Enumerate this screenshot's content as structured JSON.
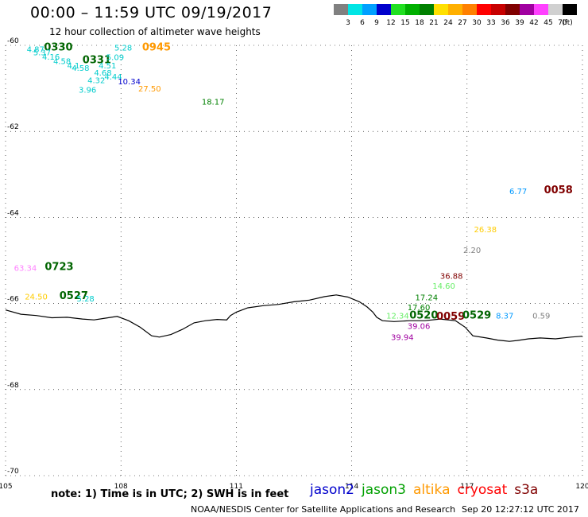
{
  "header": {
    "title": "00:00 – 11:59 UTC 09/19/2017",
    "subtitle": "12 hour collection of altimeter wave heights"
  },
  "colorbar": {
    "unit": "(ft)",
    "steps": [
      {
        "label": "3",
        "color": "#808080"
      },
      {
        "label": "6",
        "color": "#00e5e5"
      },
      {
        "label": "9",
        "color": "#00a0ff"
      },
      {
        "label": "12",
        "color": "#0000cc"
      },
      {
        "label": "15",
        "color": "#20e020"
      },
      {
        "label": "18",
        "color": "#00b000"
      },
      {
        "label": "21",
        "color": "#008000"
      },
      {
        "label": "24",
        "color": "#ffe000"
      },
      {
        "label": "27",
        "color": "#ffb000"
      },
      {
        "label": "30",
        "color": "#ff8000"
      },
      {
        "label": "33",
        "color": "#ff0000"
      },
      {
        "label": "36",
        "color": "#c80000"
      },
      {
        "label": "39",
        "color": "#800000"
      },
      {
        "label": "42",
        "color": "#a000a0"
      },
      {
        "label": "45",
        "color": "#ff40ff"
      },
      {
        "label": "70",
        "color": "#d0d0d0"
      },
      {
        "label": "",
        "color": "#000000"
      }
    ]
  },
  "map": {
    "lon_range": [
      105,
      120
    ],
    "lat_range": [
      -70,
      -60
    ],
    "lon_ticks": [
      "105",
      "108",
      "111",
      "114",
      "117",
      "120"
    ],
    "lat_ticks": [
      "-60",
      "-62",
      "-64",
      "-66",
      "-68",
      "-70"
    ],
    "grid": true,
    "coastline": [
      [
        105.0,
        -66.15
      ],
      [
        105.4,
        -66.25
      ],
      [
        105.8,
        -66.28
      ],
      [
        106.2,
        -66.33
      ],
      [
        106.6,
        -66.32
      ],
      [
        107.0,
        -66.36
      ],
      [
        107.3,
        -66.38
      ],
      [
        107.6,
        -66.34
      ],
      [
        107.9,
        -66.3
      ],
      [
        108.2,
        -66.4
      ],
      [
        108.5,
        -66.55
      ],
      [
        108.8,
        -66.75
      ],
      [
        109.0,
        -66.78
      ],
      [
        109.3,
        -66.72
      ],
      [
        109.6,
        -66.6
      ],
      [
        109.9,
        -66.45
      ],
      [
        110.2,
        -66.4
      ],
      [
        110.5,
        -66.37
      ],
      [
        110.75,
        -66.38
      ],
      [
        110.85,
        -66.28
      ],
      [
        111.0,
        -66.2
      ],
      [
        111.3,
        -66.1
      ],
      [
        111.7,
        -66.05
      ],
      [
        112.1,
        -66.02
      ],
      [
        112.5,
        -65.96
      ],
      [
        112.9,
        -65.92
      ],
      [
        113.3,
        -65.84
      ],
      [
        113.6,
        -65.8
      ],
      [
        113.9,
        -65.85
      ],
      [
        114.2,
        -65.96
      ],
      [
        114.4,
        -66.08
      ],
      [
        114.55,
        -66.2
      ],
      [
        114.65,
        -66.32
      ],
      [
        114.8,
        -66.4
      ],
      [
        115.1,
        -66.42
      ],
      [
        115.5,
        -66.4
      ],
      [
        115.9,
        -66.4
      ],
      [
        116.3,
        -66.36
      ],
      [
        116.7,
        -66.4
      ],
      [
        116.95,
        -66.55
      ],
      [
        117.15,
        -66.75
      ],
      [
        117.5,
        -66.8
      ],
      [
        117.8,
        -66.85
      ],
      [
        118.1,
        -66.88
      ],
      [
        118.3,
        -66.86
      ],
      [
        118.6,
        -66.82
      ],
      [
        118.9,
        -66.8
      ],
      [
        119.3,
        -66.82
      ],
      [
        119.7,
        -66.78
      ],
      [
        120.0,
        -66.76
      ]
    ],
    "annotations": [
      {
        "text": "4.87",
        "lon": 105.55,
        "lat": -60.08,
        "color": "#00cccc"
      },
      {
        "text": "0330",
        "lon": 106.0,
        "lat": -60.05,
        "color": "#006400",
        "bold": true
      },
      {
        "text": "5.37",
        "lon": 105.72,
        "lat": -60.16,
        "color": "#00cccc"
      },
      {
        "text": "4.16",
        "lon": 105.95,
        "lat": -60.26,
        "color": "#00cccc"
      },
      {
        "text": "4.58",
        "lon": 106.24,
        "lat": -60.36,
        "color": "#00cccc"
      },
      {
        "text": "0331",
        "lon": 107.0,
        "lat": -60.34,
        "color": "#006400",
        "bold": true
      },
      {
        "text": "4.1",
        "lon": 106.6,
        "lat": -60.46,
        "color": "#00cccc"
      },
      {
        "text": "4.58",
        "lon": 106.72,
        "lat": -60.52,
        "color": "#00cccc"
      },
      {
        "text": "4.51",
        "lon": 107.42,
        "lat": -60.46,
        "color": "#00cccc"
      },
      {
        "text": "4.68",
        "lon": 107.3,
        "lat": -60.63,
        "color": "#00cccc"
      },
      {
        "text": "4.44",
        "lon": 107.57,
        "lat": -60.72,
        "color": "#00cccc"
      },
      {
        "text": "5.28",
        "lon": 107.83,
        "lat": -60.05,
        "color": "#00cccc"
      },
      {
        "text": "5.09",
        "lon": 107.62,
        "lat": -60.27,
        "color": "#00cccc"
      },
      {
        "text": "0945",
        "lon": 108.55,
        "lat": -60.05,
        "color": "#ff9900",
        "bold": true
      },
      {
        "text": "4.32",
        "lon": 107.13,
        "lat": -60.8,
        "color": "#00cccc"
      },
      {
        "text": "10.34",
        "lon": 107.92,
        "lat": -60.83,
        "color": "#0000cc"
      },
      {
        "text": "3.96",
        "lon": 106.9,
        "lat": -61.03,
        "color": "#00cccc"
      },
      {
        "text": "27.50",
        "lon": 108.45,
        "lat": -61.0,
        "color": "#ff9900"
      },
      {
        "text": "18.17",
        "lon": 110.1,
        "lat": -61.3,
        "color": "#008000"
      },
      {
        "text": "63.34",
        "lon": 105.22,
        "lat": -65.17,
        "color": "#ff80ff"
      },
      {
        "text": "0723",
        "lon": 106.02,
        "lat": -65.15,
        "color": "#006400",
        "bold": true
      },
      {
        "text": "24.50",
        "lon": 105.5,
        "lat": -65.83,
        "color": "#ffcc00"
      },
      {
        "text": "0527",
        "lon": 106.4,
        "lat": -65.82,
        "color": "#006400",
        "bold": true
      },
      {
        "text": "5.28",
        "lon": 106.85,
        "lat": -65.88,
        "color": "#00cccc"
      },
      {
        "text": "6.77",
        "lon": 118.1,
        "lat": -63.38,
        "color": "#0099ff"
      },
      {
        "text": "0058",
        "lon": 119.0,
        "lat": -63.36,
        "color": "#800000",
        "bold": true
      },
      {
        "text": "26.38",
        "lon": 117.18,
        "lat": -64.27,
        "color": "#ffcc00"
      },
      {
        "text": "2.20",
        "lon": 116.9,
        "lat": -64.75,
        "color": "#808080"
      },
      {
        "text": "36.88",
        "lon": 116.3,
        "lat": -65.35,
        "color": "#800000"
      },
      {
        "text": "14.60",
        "lon": 116.1,
        "lat": -65.58,
        "color": "#66ee66"
      },
      {
        "text": "17.24",
        "lon": 115.65,
        "lat": -65.85,
        "color": "#008000"
      },
      {
        "text": "17.60",
        "lon": 115.45,
        "lat": -66.08,
        "color": "#008000"
      },
      {
        "text": "12.34",
        "lon": 114.9,
        "lat": -66.28,
        "color": "#66ee66"
      },
      {
        "text": "0520",
        "lon": 115.5,
        "lat": -66.28,
        "color": "#006400",
        "bold": true
      },
      {
        "text": "0059",
        "lon": 116.2,
        "lat": -66.3,
        "color": "#800000",
        "bold": true
      },
      {
        "text": "0529",
        "lon": 116.88,
        "lat": -66.28,
        "color": "#006400",
        "bold": true
      },
      {
        "text": "8.37",
        "lon": 117.75,
        "lat": -66.28,
        "color": "#0099ff"
      },
      {
        "text": "0.59",
        "lon": 118.7,
        "lat": -66.28,
        "color": "#808080"
      },
      {
        "text": "39.06",
        "lon": 115.45,
        "lat": -66.52,
        "color": "#a000a0"
      },
      {
        "text": "39.94",
        "lon": 115.02,
        "lat": -66.77,
        "color": "#a000a0"
      }
    ]
  },
  "footer": {
    "note": "note:  1) Time is in UTC;  2) SWH is in feet",
    "satellites": [
      {
        "name": "jason2",
        "color": "#0000cc"
      },
      {
        "name": "jason3",
        "color": "#00a000"
      },
      {
        "name": "altika",
        "color": "#ff9900"
      },
      {
        "name": "cryosat",
        "color": "#ff0000"
      },
      {
        "name": "s3a",
        "color": "#800000"
      }
    ],
    "credit": "NOAA/NESDIS Center for Satellite Applications and Research",
    "timestamp": "Sep 20 12:27:12 UTC 2017"
  }
}
